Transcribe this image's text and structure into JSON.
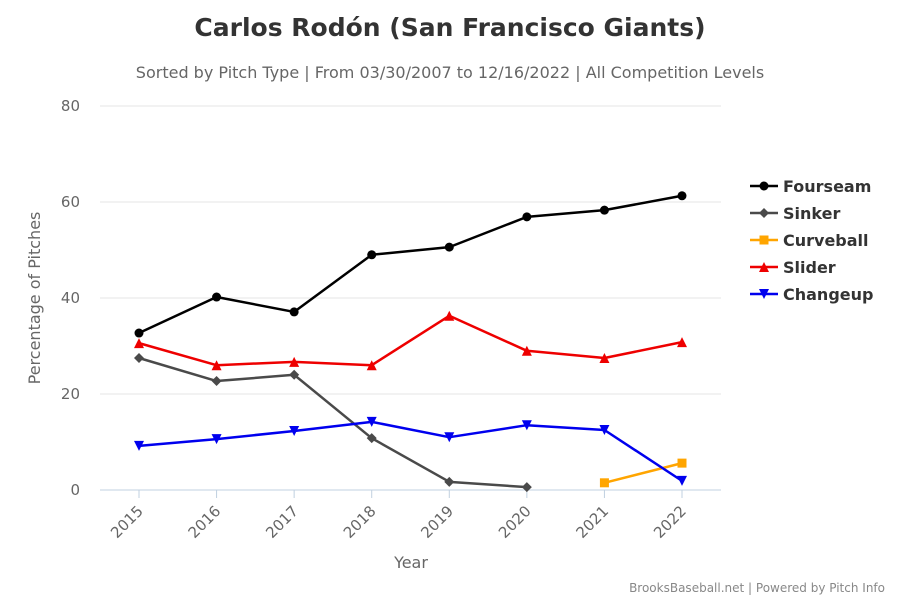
{
  "chart_data": {
    "type": "line",
    "title": "Carlos Rodón (San Francisco Giants)",
    "subtitle": "Sorted by Pitch Type | From 03/30/2007 to 12/16/2022 | All Competition Levels",
    "xlabel": "Year",
    "ylabel": "Percentage of Pitches",
    "categories": [
      "2015",
      "2016",
      "2017",
      "2018",
      "2019",
      "2020",
      "2021",
      "2022"
    ],
    "ylim": [
      0,
      80
    ],
    "yticks": [
      0,
      20,
      40,
      60,
      80
    ],
    "grid": true,
    "legend_position": "right",
    "credits": "BrooksBaseball.net | Powered by Pitch Info",
    "series": [
      {
        "name": "Fourseam",
        "color": "#000000",
        "marker": "circle",
        "values": [
          32.7,
          40.2,
          37.1,
          49.0,
          50.6,
          56.9,
          58.3,
          61.3
        ]
      },
      {
        "name": "Sinker",
        "color": "#4a4a4a",
        "marker": "diamond",
        "values": [
          27.5,
          22.7,
          24.0,
          10.8,
          1.7,
          0.6,
          null,
          null
        ]
      },
      {
        "name": "Curveball",
        "color": "#ffa500",
        "marker": "square",
        "values": [
          null,
          null,
          null,
          null,
          null,
          null,
          1.5,
          5.6
        ]
      },
      {
        "name": "Slider",
        "color": "#ee0000",
        "marker": "triangle",
        "values": [
          30.6,
          26.0,
          26.7,
          26.0,
          36.3,
          29.0,
          27.5,
          30.8
        ]
      },
      {
        "name": "Changeup",
        "color": "#0000ee",
        "marker": "triangle-down",
        "values": [
          9.2,
          10.6,
          12.3,
          14.2,
          11.0,
          13.5,
          12.5,
          1.9
        ]
      }
    ]
  }
}
